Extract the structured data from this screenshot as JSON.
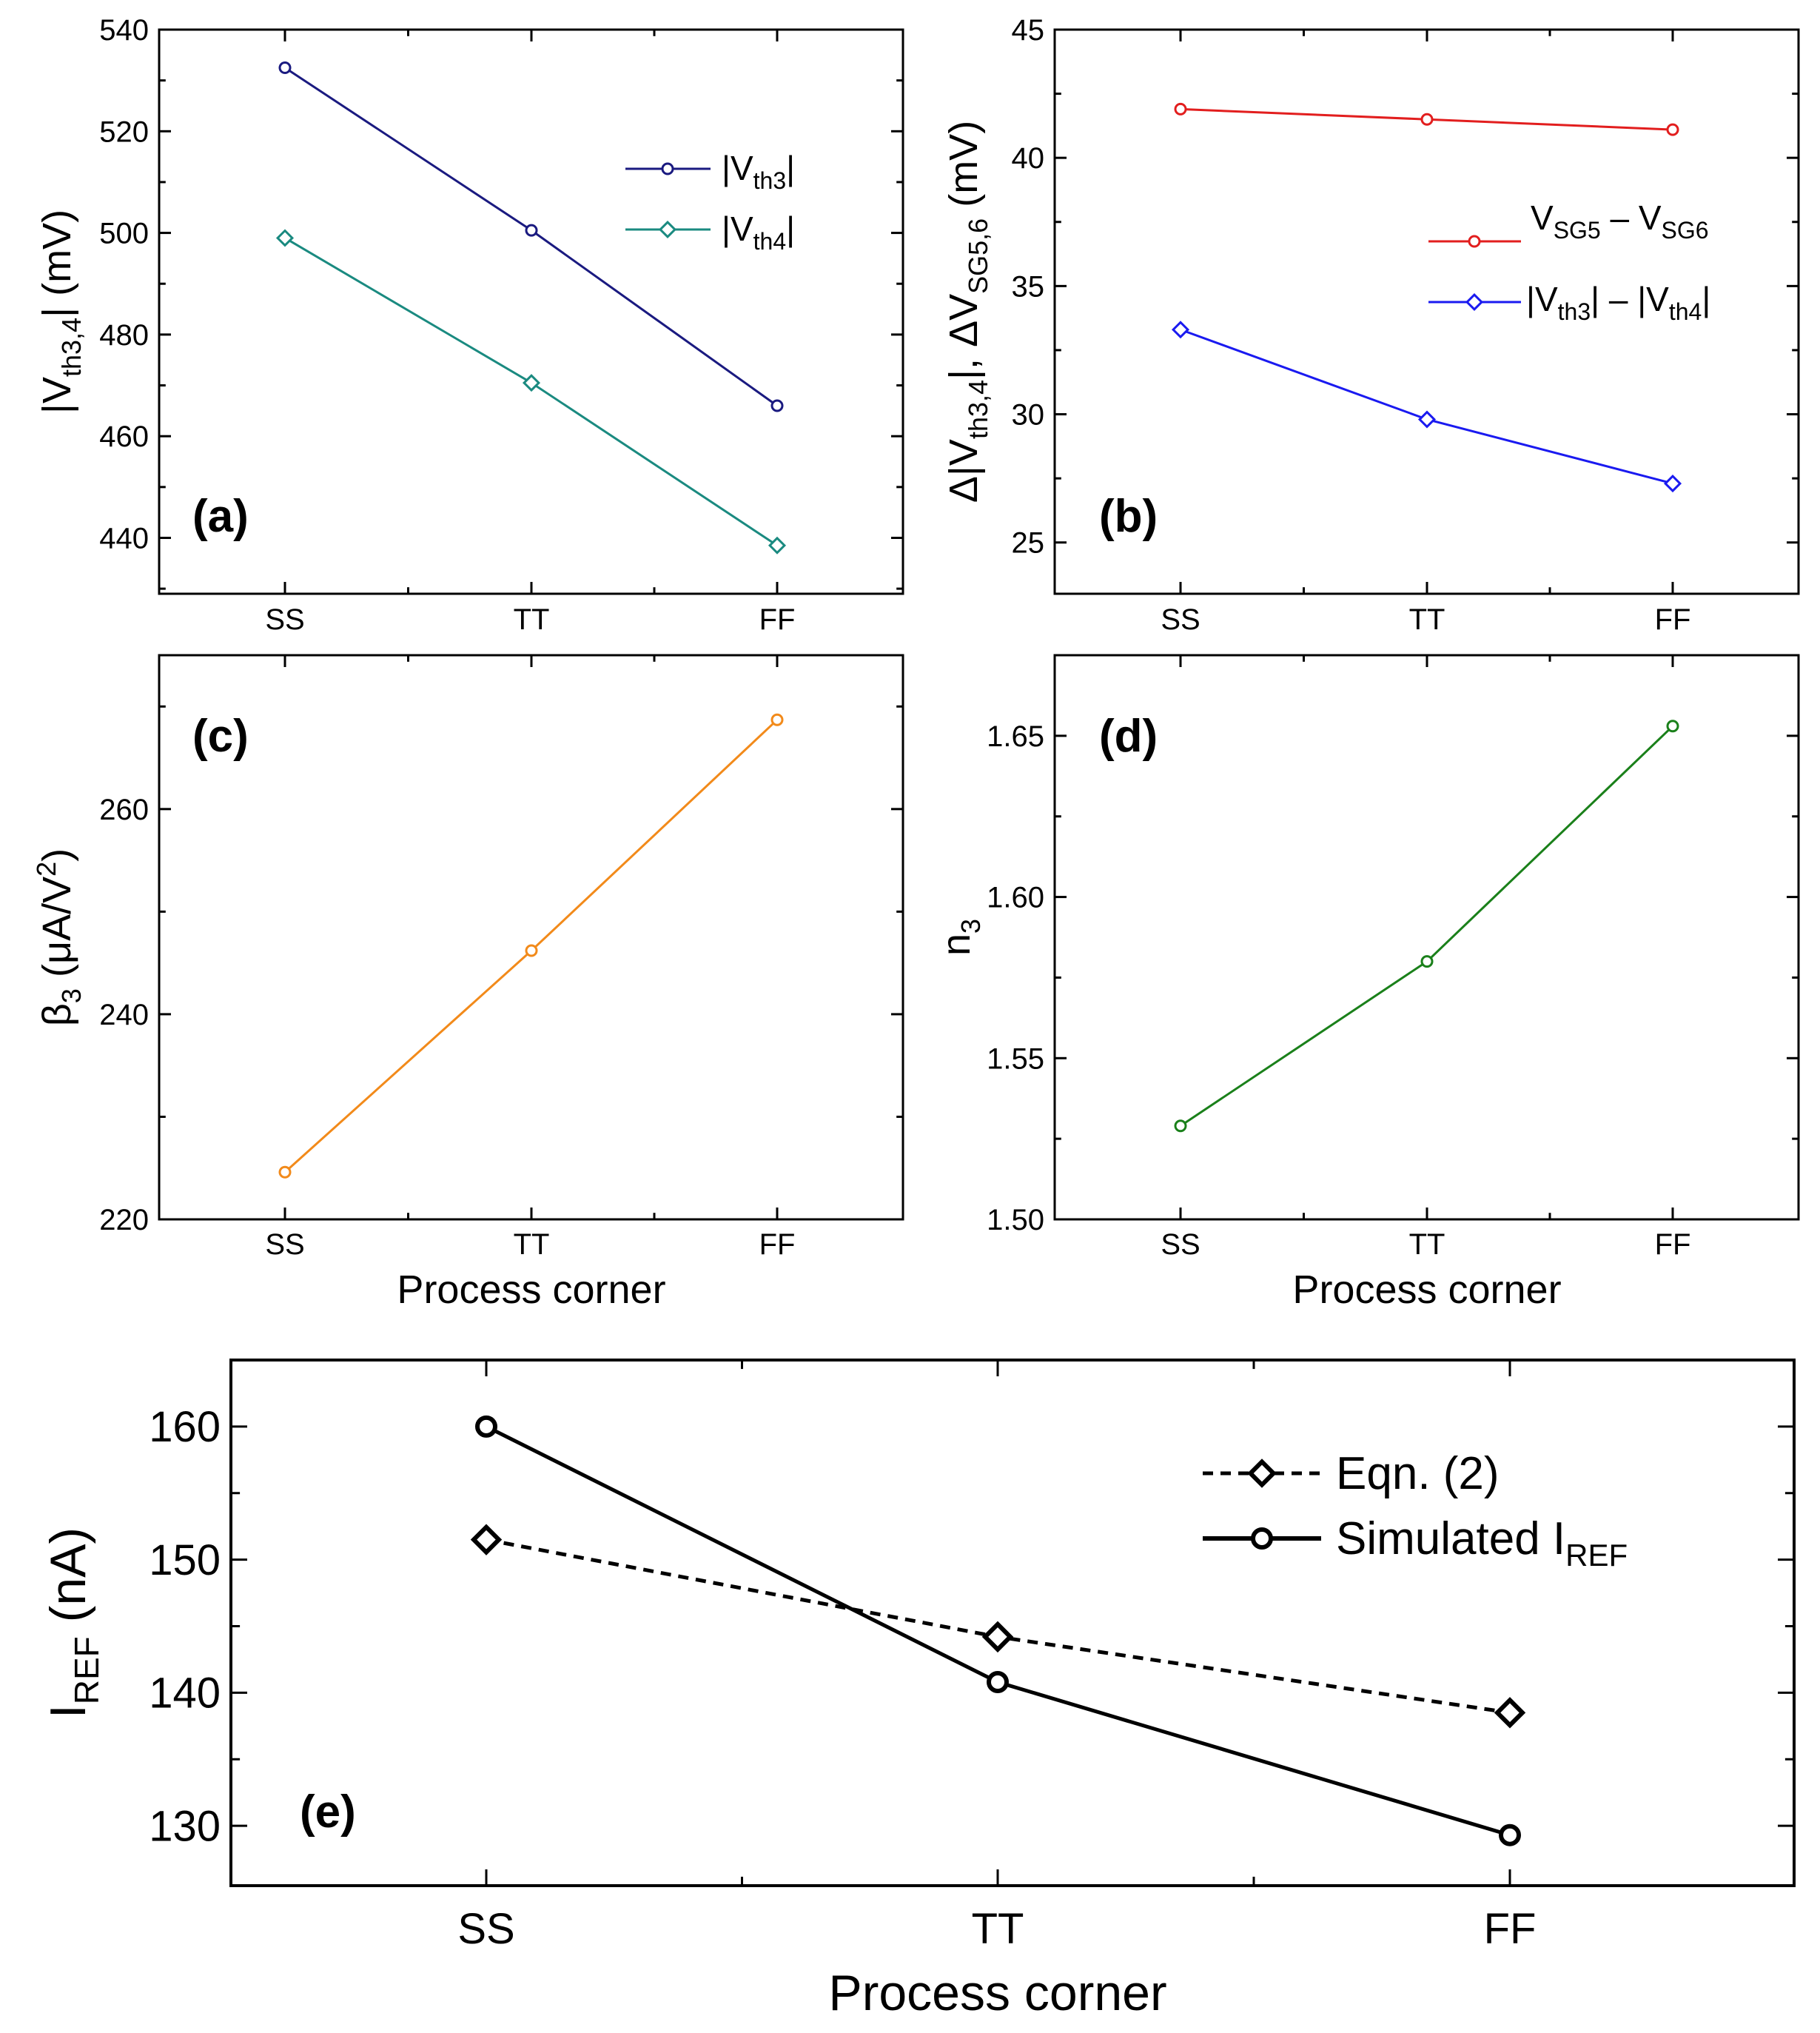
{
  "colors": {
    "vth3": "#1a1a80",
    "vth4": "#1a8a80",
    "vsg": "#e21e1e",
    "dvth": "#1a1af0",
    "beta": "#f28a1a",
    "n3": "#1a801a",
    "eqn": "#000000",
    "sim": "#000000"
  },
  "chart_data": [
    {
      "id": "a",
      "type": "line",
      "panel_label": "(a)",
      "categories": [
        "SS",
        "TT",
        "FF"
      ],
      "ylabel": "|V",
      "ylabel_sub": "th3,4",
      "ylabel_tail": "| (mV)",
      "xlabel": "",
      "ylim": [
        429,
        540
      ],
      "yticks": [
        "440",
        "460",
        "480",
        "500",
        "520",
        "540"
      ],
      "legend": "top-right",
      "series": [
        {
          "name": "|V",
          "sub": "th3",
          "tail": "|",
          "marker": "circle",
          "values": [
            532.5,
            500.5,
            466
          ]
        },
        {
          "name": "|V",
          "sub": "th4",
          "tail": "|",
          "marker": "diamond",
          "values": [
            499,
            470.5,
            438.5
          ]
        }
      ]
    },
    {
      "id": "b",
      "type": "line",
      "panel_label": "(b)",
      "categories": [
        "SS",
        "TT",
        "FF"
      ],
      "ylabel": "Δ|V",
      "ylabel_sub": "th3,4",
      "ylabel_mid": "|,  ΔV",
      "ylabel_sub2": "SG5,6",
      "ylabel_tail": " (mV)",
      "xlabel": "",
      "ylim": [
        23,
        45
      ],
      "yticks": [
        "25",
        "30",
        "35",
        "40",
        "45"
      ],
      "legend": "center-right",
      "series": [
        {
          "name": "V",
          "sub": "SG5",
          "tail": " – V",
          "sub2": "SG6",
          "marker": "circle",
          "values": [
            41.9,
            41.5,
            41.1
          ]
        },
        {
          "name": "|V",
          "sub": "th3",
          "tail": "| – |V",
          "sub2": "th4",
          "tail2": "|",
          "marker": "diamond",
          "values": [
            33.3,
            29.8,
            27.3
          ]
        }
      ]
    },
    {
      "id": "c",
      "type": "line",
      "panel_label": "(c)",
      "categories": [
        "SS",
        "TT",
        "FF"
      ],
      "ylabel": "β",
      "ylabel_sub": "3",
      "ylabel_tail": " (μA/V",
      "ylabel_sup": "2",
      "ylabel_end": ")",
      "xlabel": "Process corner",
      "ylim": [
        220,
        275
      ],
      "yticks": [
        "220",
        "240",
        "260"
      ],
      "series": [
        {
          "name": "β3",
          "marker": "circle",
          "values": [
            224.6,
            246.2,
            268.7
          ]
        }
      ]
    },
    {
      "id": "d",
      "type": "line",
      "panel_label": "(d)",
      "categories": [
        "SS",
        "TT",
        "FF"
      ],
      "ylabel": "n",
      "ylabel_sub": "3",
      "xlabel": "Process corner",
      "ylim": [
        1.5,
        1.675
      ],
      "yticks": [
        "1.50",
        "1.55",
        "1.60",
        "1.65"
      ],
      "series": [
        {
          "name": "n3",
          "marker": "circle",
          "values": [
            1.529,
            1.58,
            1.653
          ]
        }
      ]
    },
    {
      "id": "e",
      "type": "line",
      "panel_label": "(e)",
      "categories": [
        "SS",
        "TT",
        "FF"
      ],
      "ylabel": "I",
      "ylabel_sub": "REF",
      "ylabel_tail": " (nA)",
      "xlabel": "Process corner",
      "ylim": [
        125.5,
        165
      ],
      "yticks": [
        "130",
        "140",
        "150",
        "160"
      ],
      "legend": "top-right",
      "series": [
        {
          "name": "Eqn. (2)",
          "marker": "diamond",
          "dashed": true,
          "values": [
            151.5,
            144.2,
            138.5
          ]
        },
        {
          "name": "Simulated I",
          "sub": "REF",
          "marker": "circle",
          "dashed": false,
          "values": [
            160,
            140.8,
            129.3
          ]
        }
      ]
    }
  ]
}
